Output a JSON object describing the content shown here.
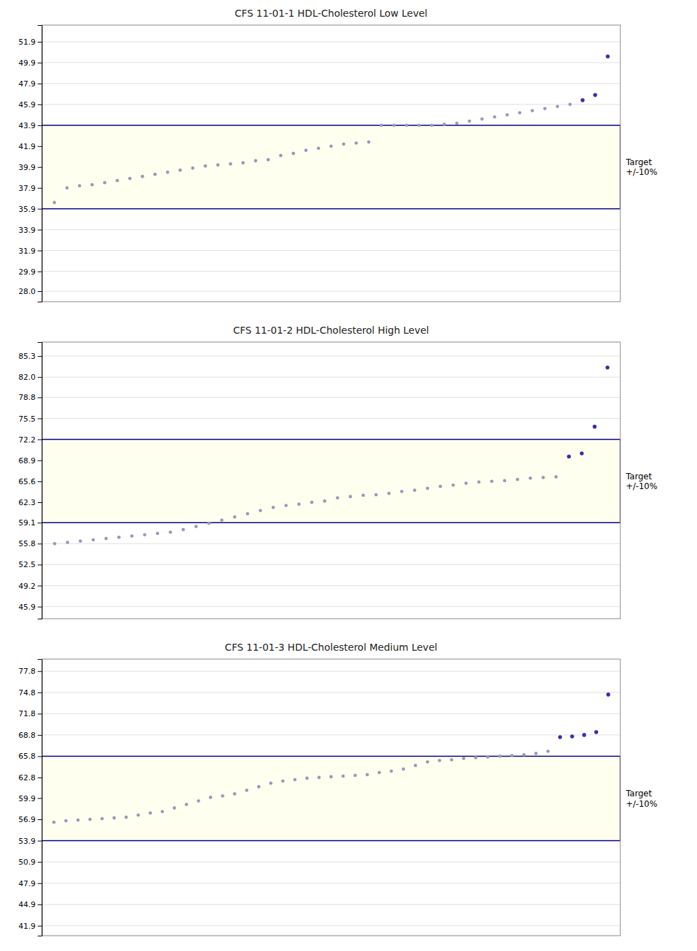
{
  "chart_data": [
    {
      "type": "scatter",
      "title": "CFS 11-01-1 HDL-Cholesterol  Low Level",
      "ylim": [
        27.0,
        53.5
      ],
      "yticks": [
        51.9,
        49.9,
        47.9,
        45.9,
        43.9,
        41.9,
        39.9,
        37.9,
        35.9,
        33.9,
        31.9,
        29.9,
        {
          "value": 28.0,
          "label": "28.0"
        }
      ],
      "grid": true,
      "tick_labels": "y",
      "band": {
        "low": 35.9,
        "high": 43.9,
        "label": "Target\n+/-10%",
        "color": "#000080",
        "fill": "#FFFFF0"
      },
      "series": [
        {
          "color": "#9999BB",
          "values": [
            36.5,
            37.9,
            38.1,
            38.2,
            38.4,
            38.6,
            38.8,
            39.0,
            39.2,
            39.4,
            39.6,
            39.8,
            40.0,
            40.1,
            40.2,
            40.3,
            40.5,
            40.6,
            41.0,
            41.2,
            41.5,
            41.7,
            41.9,
            42.1,
            42.2,
            42.3,
            43.9,
            43.9,
            43.9,
            43.9,
            43.9,
            44.0,
            44.1,
            44.3,
            44.5,
            44.7,
            44.9,
            45.1,
            45.3,
            45.5,
            45.7,
            45.9,
            null,
            null,
            null
          ]
        },
        {
          "color": "#3333AA",
          "values": [
            null,
            null,
            null,
            null,
            null,
            null,
            null,
            null,
            null,
            null,
            null,
            null,
            null,
            null,
            null,
            null,
            null,
            null,
            null,
            null,
            null,
            null,
            null,
            null,
            null,
            null,
            null,
            null,
            null,
            null,
            null,
            null,
            null,
            null,
            null,
            null,
            null,
            null,
            null,
            null,
            null,
            null,
            46.3,
            46.8,
            50.5
          ]
        }
      ]
    },
    {
      "type": "scatter",
      "title": "CFS 11-01-2 HDL-Cholesterol  High Level",
      "ylim": [
        44.0,
        87.5
      ],
      "yticks": [
        85.3,
        {
          "value": 82.0,
          "label": "82.0"
        },
        78.8,
        75.5,
        72.2,
        68.9,
        65.6,
        62.3,
        59.1,
        55.8,
        52.5,
        49.2,
        45.9
      ],
      "grid": true,
      "tick_labels": "y",
      "band": {
        "low": 59.1,
        "high": 72.2,
        "label": "Target\n+/-10%",
        "color": "#000080",
        "fill": "#FFFFF0"
      },
      "series": [
        {
          "color": "#9999BB",
          "values": [
            55.8,
            56.0,
            56.2,
            56.4,
            56.6,
            56.8,
            57.0,
            57.2,
            57.4,
            57.6,
            58.0,
            58.5,
            59.0,
            59.5,
            60.0,
            60.5,
            61.0,
            61.5,
            61.8,
            62.0,
            62.3,
            62.5,
            63.0,
            63.2,
            63.4,
            63.5,
            63.7,
            64.0,
            64.2,
            64.5,
            64.8,
            65.0,
            65.3,
            65.5,
            65.6,
            65.7,
            65.9,
            66.1,
            66.2,
            66.3,
            null,
            null,
            null,
            null
          ]
        },
        {
          "color": "#3333AA",
          "values": [
            null,
            null,
            null,
            null,
            null,
            null,
            null,
            null,
            null,
            null,
            null,
            null,
            null,
            null,
            null,
            null,
            null,
            null,
            null,
            null,
            null,
            null,
            null,
            null,
            null,
            null,
            null,
            null,
            null,
            null,
            null,
            null,
            null,
            null,
            null,
            null,
            null,
            null,
            null,
            null,
            69.5,
            70.0,
            74.2,
            83.5
          ]
        }
      ]
    },
    {
      "type": "scatter",
      "title": "CFS 11-01-3 HDL-Cholesterol  Medium Level",
      "ylim": [
        40.5,
        79.5
      ],
      "yticks": [
        77.8,
        74.8,
        71.8,
        68.8,
        65.8,
        62.8,
        59.9,
        56.9,
        53.9,
        50.9,
        47.9,
        44.9,
        41.9
      ],
      "grid": true,
      "tick_labels": "y",
      "band": {
        "low": 53.9,
        "high": 65.8,
        "label": "Target\n+/-10%",
        "color": "#000080",
        "fill": "#FFFFF0"
      },
      "series": [
        {
          "color": "#9999BB",
          "values": [
            56.5,
            56.7,
            56.8,
            56.9,
            57.0,
            57.1,
            57.2,
            57.5,
            57.8,
            58.0,
            58.5,
            59.0,
            59.5,
            60.0,
            60.2,
            60.5,
            61.0,
            61.5,
            62.0,
            62.3,
            62.5,
            62.7,
            62.8,
            62.9,
            63.0,
            63.1,
            63.2,
            63.5,
            63.7,
            64.0,
            64.5,
            65.0,
            65.2,
            65.3,
            65.5,
            65.6,
            65.7,
            65.8,
            65.9,
            66.0,
            66.2,
            66.5,
            null,
            null,
            null,
            null,
            null
          ]
        },
        {
          "color": "#3333AA",
          "values": [
            null,
            null,
            null,
            null,
            null,
            null,
            null,
            null,
            null,
            null,
            null,
            null,
            null,
            null,
            null,
            null,
            null,
            null,
            null,
            null,
            null,
            null,
            null,
            null,
            null,
            null,
            null,
            null,
            null,
            null,
            null,
            null,
            null,
            null,
            null,
            null,
            null,
            null,
            null,
            null,
            null,
            null,
            68.5,
            68.6,
            68.8,
            69.2,
            74.5
          ]
        }
      ]
    }
  ]
}
